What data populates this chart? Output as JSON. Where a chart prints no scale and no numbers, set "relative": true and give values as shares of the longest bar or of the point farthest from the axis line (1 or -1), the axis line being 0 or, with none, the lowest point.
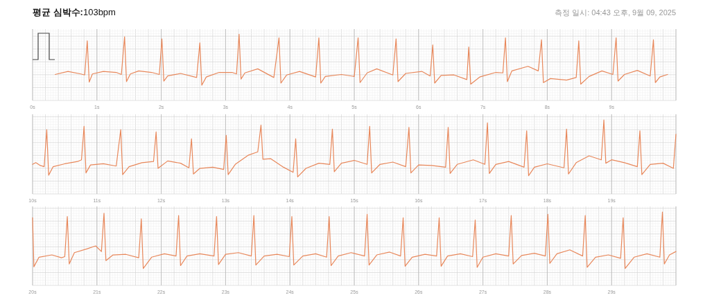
{
  "chart_data": [
    {
      "type": "line",
      "title": "**평균 심박수:**103bpm",
      "annotations": [
        "측정 일시: 04:43 오후, 9월 09, 2025"
      ],
      "relative": true,
      "grid": true,
      "xlim": [
        0,
        10
      ],
      "xticks": [
        {
          "value": 0,
          "label": "0s"
        },
        {
          "value": 1,
          "label": "1s"
        },
        {
          "value": 2,
          "label": "2s"
        },
        {
          "value": 3,
          "label": "3s"
        },
        {
          "value": 4,
          "label": "4s"
        },
        {
          "value": 5,
          "label": "5s"
        },
        {
          "value": 6,
          "label": "6s"
        },
        {
          "value": 7,
          "label": "7s"
        },
        {
          "value": 8,
          "label": "8s"
        },
        {
          "value": 9,
          "label": "9s"
        }
      ],
      "series": [
        {
          "color": "#e8875a",
          "x": [
            0.35,
            0.55,
            0.75,
            0.81,
            0.85,
            0.88,
            0.93,
            1.1,
            1.3,
            1.38,
            1.43,
            1.46,
            1.52,
            1.65,
            1.85,
            1.97,
            2.01,
            2.04,
            2.1,
            2.3,
            2.55,
            2.6,
            2.63,
            2.7,
            2.9,
            3.1,
            3.17,
            3.21,
            3.24,
            3.3,
            3.5,
            3.75,
            3.83,
            3.86,
            3.95,
            4.15,
            4.4,
            4.45,
            4.48,
            4.55,
            4.8,
            5.0,
            5.06,
            5.09,
            5.2,
            5.35,
            5.6,
            5.65,
            5.68,
            5.8,
            6.05,
            6.18,
            6.22,
            6.25,
            6.35,
            6.55,
            6.75,
            6.78,
            6.81,
            6.95,
            7.2,
            7.31,
            7.35,
            7.38,
            7.45,
            7.7,
            7.86,
            7.91,
            7.94,
            8.05,
            8.3,
            8.45,
            8.49,
            8.52,
            8.65,
            8.85,
            9.02,
            9.07,
            9.1,
            9.2,
            9.4,
            9.6,
            9.65,
            9.68,
            9.75,
            9.87
          ],
          "values": [
            0.21,
            0.27,
            0.22,
            0.2,
            0.87,
            0.06,
            0.22,
            0.27,
            0.25,
            0.21,
            0.95,
            0.07,
            0.22,
            0.28,
            0.25,
            0.21,
            0.91,
            0.08,
            0.18,
            0.23,
            0.15,
            0.83,
            0.0,
            0.16,
            0.25,
            0.25,
            0.22,
            1.0,
            0.12,
            0.24,
            0.32,
            0.15,
            0.93,
            0.04,
            0.2,
            0.27,
            0.16,
            0.93,
            0.04,
            0.17,
            0.21,
            0.17,
            0.93,
            0.05,
            0.24,
            0.32,
            0.2,
            0.91,
            0.07,
            0.23,
            0.27,
            0.18,
            0.79,
            0.04,
            0.19,
            0.2,
            0.11,
            0.75,
            0.02,
            0.16,
            0.25,
            0.24,
            0.93,
            0.07,
            0.28,
            0.37,
            0.28,
            0.89,
            0.05,
            0.13,
            0.1,
            0.15,
            0.87,
            0.02,
            0.17,
            0.28,
            0.21,
            0.93,
            0.08,
            0.21,
            0.29,
            0.18,
            0.89,
            0.05,
            0.16,
            0.21
          ]
        }
      ]
    },
    {
      "type": "line",
      "relative": true,
      "grid": true,
      "xlim": [
        10,
        20
      ],
      "xticks": [
        {
          "value": 10,
          "label": "10s"
        },
        {
          "value": 11,
          "label": "11s"
        },
        {
          "value": 12,
          "label": "12s"
        },
        {
          "value": 13,
          "label": "13s"
        },
        {
          "value": 14,
          "label": "14s"
        },
        {
          "value": 15,
          "label": "15s"
        },
        {
          "value": 16,
          "label": "16s"
        },
        {
          "value": 17,
          "label": "17s"
        },
        {
          "value": 18,
          "label": "18s"
        },
        {
          "value": 19,
          "label": "19s"
        }
      ],
      "series": [
        {
          "color": "#e8875a",
          "x": [
            10.0,
            10.05,
            10.12,
            10.18,
            10.22,
            10.25,
            10.32,
            10.5,
            10.7,
            10.76,
            10.8,
            10.83,
            10.9,
            11.1,
            11.3,
            11.37,
            11.4,
            11.5,
            11.7,
            11.88,
            11.92,
            11.95,
            12.1,
            12.3,
            12.43,
            12.47,
            12.5,
            12.6,
            12.8,
            12.97,
            13.01,
            13.04,
            13.15,
            13.35,
            13.5,
            13.55,
            13.58,
            13.7,
            13.9,
            14.05,
            14.09,
            14.12,
            14.25,
            14.45,
            14.62,
            14.66,
            14.69,
            14.8,
            15.0,
            15.2,
            15.24,
            15.27,
            15.4,
            15.6,
            15.8,
            15.85,
            15.88,
            16.0,
            16.2,
            16.42,
            16.46,
            16.49,
            16.6,
            16.85,
            17.03,
            17.07,
            17.1,
            17.2,
            17.4,
            17.64,
            17.68,
            17.71,
            17.8,
            18.0,
            18.26,
            18.3,
            18.33,
            18.45,
            18.65,
            18.84,
            18.88,
            18.91,
            19.0,
            19.2,
            19.4,
            19.44,
            19.47,
            19.6,
            19.8,
            19.96,
            20.0
          ],
          "values": [
            0.22,
            0.25,
            0.2,
            0.18,
            0.83,
            0.03,
            0.18,
            0.23,
            0.27,
            0.3,
            0.89,
            0.07,
            0.21,
            0.23,
            0.19,
            0.83,
            0.04,
            0.18,
            0.25,
            0.27,
            0.79,
            0.15,
            0.28,
            0.24,
            0.16,
            0.67,
            0.05,
            0.15,
            0.17,
            0.13,
            0.73,
            0.04,
            0.22,
            0.38,
            0.44,
            0.91,
            0.31,
            0.32,
            0.17,
            0.08,
            0.67,
            0.0,
            0.15,
            0.24,
            0.22,
            0.84,
            0.09,
            0.24,
            0.29,
            0.22,
            0.89,
            0.07,
            0.22,
            0.26,
            0.18,
            0.87,
            0.07,
            0.21,
            0.2,
            0.17,
            0.87,
            0.06,
            0.22,
            0.3,
            0.22,
            0.95,
            0.06,
            0.22,
            0.27,
            0.17,
            0.81,
            0.02,
            0.17,
            0.23,
            0.16,
            0.84,
            0.05,
            0.25,
            0.37,
            0.3,
            1.0,
            0.24,
            0.3,
            0.25,
            0.18,
            0.81,
            0.04,
            0.22,
            0.24,
            0.15,
            0.75
          ]
        }
      ]
    },
    {
      "type": "line",
      "relative": true,
      "grid": true,
      "xlim": [
        20,
        30
      ],
      "xticks": [
        {
          "value": 20,
          "label": "20s"
        },
        {
          "value": 21,
          "label": "21s"
        },
        {
          "value": 22,
          "label": "22s"
        },
        {
          "value": 23,
          "label": "23s"
        },
        {
          "value": 24,
          "label": "24s"
        },
        {
          "value": 25,
          "label": "25s"
        },
        {
          "value": 26,
          "label": "26s"
        },
        {
          "value": 27,
          "label": "27s"
        },
        {
          "value": 28,
          "label": "28s"
        },
        {
          "value": 29,
          "label": "29s"
        }
      ],
      "series": [
        {
          "color": "#e8875a",
          "x": [
            20.0,
            20.02,
            20.1,
            20.3,
            20.45,
            20.5,
            20.54,
            20.57,
            20.65,
            20.85,
            20.98,
            21.07,
            21.11,
            21.14,
            21.25,
            21.45,
            21.65,
            21.69,
            21.72,
            21.85,
            22.05,
            22.23,
            22.27,
            22.3,
            22.4,
            22.6,
            22.82,
            22.86,
            22.89,
            23.0,
            23.2,
            23.4,
            23.44,
            23.47,
            23.6,
            23.8,
            23.99,
            24.03,
            24.06,
            24.2,
            24.4,
            24.57,
            24.61,
            24.64,
            24.75,
            24.95,
            25.16,
            25.2,
            25.23,
            25.35,
            25.55,
            25.72,
            25.76,
            25.79,
            25.9,
            26.1,
            26.28,
            26.32,
            26.35,
            26.45,
            26.65,
            26.84,
            26.88,
            26.91,
            27.0,
            27.2,
            27.4,
            27.44,
            27.47,
            27.6,
            27.8,
            27.97,
            28.01,
            28.04,
            28.15,
            28.35,
            28.55,
            28.59,
            28.62,
            28.75,
            28.95,
            29.14,
            29.18,
            29.21,
            29.35,
            29.55,
            29.75,
            29.79,
            29.82,
            29.9,
            30.0
          ],
          "values": [
            0.9,
            0.03,
            0.2,
            0.24,
            0.19,
            0.21,
            0.92,
            0.08,
            0.28,
            0.35,
            0.4,
            0.3,
            0.98,
            0.14,
            0.24,
            0.25,
            0.19,
            0.88,
            0.0,
            0.2,
            0.26,
            0.22,
            0.94,
            0.05,
            0.22,
            0.26,
            0.22,
            0.92,
            0.07,
            0.25,
            0.28,
            0.22,
            0.94,
            0.06,
            0.22,
            0.25,
            0.21,
            0.92,
            0.06,
            0.22,
            0.26,
            0.2,
            0.92,
            0.05,
            0.22,
            0.28,
            0.22,
            0.96,
            0.06,
            0.24,
            0.29,
            0.22,
            0.9,
            0.04,
            0.2,
            0.25,
            0.22,
            0.9,
            0.04,
            0.22,
            0.26,
            0.21,
            0.86,
            0.02,
            0.2,
            0.26,
            0.22,
            0.94,
            0.08,
            0.23,
            0.27,
            0.22,
            0.96,
            0.09,
            0.26,
            0.33,
            0.22,
            0.94,
            0.02,
            0.2,
            0.24,
            0.18,
            0.9,
            0.0,
            0.2,
            0.26,
            0.2,
            1.0,
            0.08,
            0.24,
            0.3
          ]
        }
      ]
    }
  ]
}
